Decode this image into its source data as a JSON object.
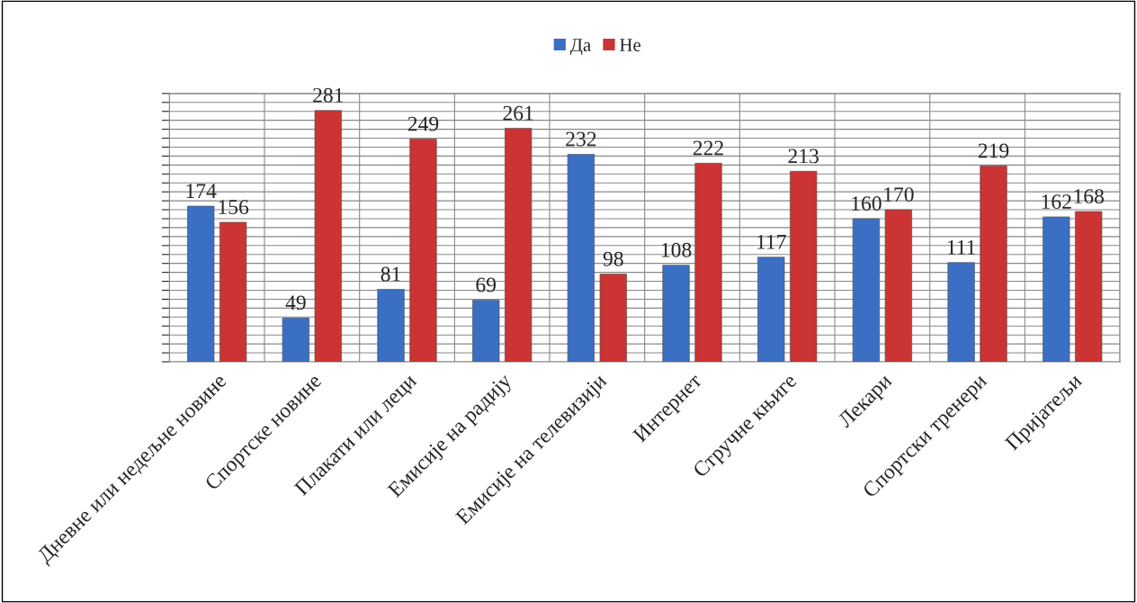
{
  "chart_data": {
    "type": "bar",
    "categories": [
      "Дневне или недељне новине",
      "Спортске новине",
      "Плакати или леци",
      "Емисије на радију",
      "Емисије на телевизији",
      "Интернет",
      "Стручне књиге",
      "Лекари",
      "Спортски тренери",
      "Пријатељи"
    ],
    "series": [
      {
        "name": "Да",
        "color": "#3a6fc4",
        "values": [
          174,
          49,
          81,
          69,
          232,
          108,
          117,
          160,
          111,
          162
        ]
      },
      {
        "name": "Не",
        "color": "#cc3333",
        "values": [
          156,
          281,
          249,
          261,
          98,
          222,
          213,
          170,
          219,
          168
        ]
      }
    ],
    "ylim": [
      0,
      300
    ],
    "yticks": [
      {
        "value": 0,
        "label": null
      },
      {
        "value": 10,
        "label": null
      },
      {
        "value": 20,
        "label": null
      },
      {
        "value": 30,
        "label": null
      },
      {
        "value": 40,
        "label": null
      },
      {
        "value": 50,
        "label": null
      },
      {
        "value": 60,
        "label": null
      },
      {
        "value": 70,
        "label": null
      },
      {
        "value": 80,
        "label": null
      },
      {
        "value": 90,
        "label": null
      },
      {
        "value": 100,
        "label": null
      },
      {
        "value": 110,
        "label": null
      },
      {
        "value": 120,
        "label": null
      },
      {
        "value": 130,
        "label": null
      },
      {
        "value": 140,
        "label": null
      },
      {
        "value": 150,
        "label": null
      },
      {
        "value": 160,
        "label": null
      },
      {
        "value": 170,
        "label": null
      },
      {
        "value": 180,
        "label": null
      },
      {
        "value": 190,
        "label": null
      },
      {
        "value": 200,
        "label": null
      },
      {
        "value": 210,
        "label": null
      },
      {
        "value": 220,
        "label": null
      },
      {
        "value": 230,
        "label": null
      },
      {
        "value": 240,
        "label": null
      },
      {
        "value": 250,
        "label": null
      },
      {
        "value": 260,
        "label": null
      },
      {
        "value": 270,
        "label": null
      },
      {
        "value": 280,
        "label": null
      },
      {
        "value": 290,
        "label": null
      },
      {
        "value": 300,
        "label": null
      }
    ],
    "tick_labels": "x",
    "grid": true,
    "legend": "top",
    "data_labels": true
  }
}
